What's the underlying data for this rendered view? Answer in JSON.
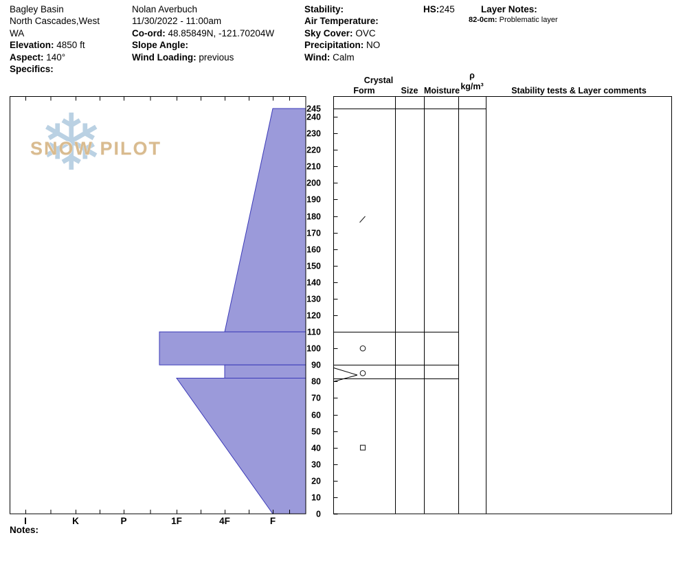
{
  "header": {
    "location": {
      "name": "Bagley Basin",
      "region_line1": "North Cascades,West",
      "region_line2": "WA",
      "elevation_label": "Elevation:",
      "elevation": "4850 ft",
      "aspect_label": "Aspect:",
      "aspect": "140°",
      "specifics_label": "Specifics:"
    },
    "observer": {
      "name": "Nolan Averbuch",
      "datetime": "11/30/2022 - 11:00am",
      "coord_label": "Co-ord:",
      "coord": "48.85849N, -121.70204W",
      "slope_label": "Slope Angle:",
      "wind_loading_label": "Wind Loading:",
      "wind_loading_value": "previous"
    },
    "conditions": {
      "stability_label": "Stability:",
      "air_temp_label": "Air Temperature:",
      "sky_label": "Sky Cover:",
      "sky_value": "OVC",
      "precip_label": "Precipitation:",
      "precip_value": "NO",
      "wind_label": "Wind:",
      "wind_value": "Calm"
    },
    "hs_label": "HS:",
    "hs_value": "245",
    "layer_notes_label": "Layer Notes:",
    "layer_note": {
      "depth": "82-0cm:",
      "text": "Problematic layer"
    }
  },
  "logo": {
    "snowflake": "❄",
    "text": "SNOW PILOT"
  },
  "columns": {
    "crystal": "Crystal",
    "form": "Form",
    "size": "Size",
    "moisture": "Moisture",
    "rho": "ρ",
    "rho_units": "kg/m³",
    "stability": "Stability tests & Layer comments"
  },
  "notes_label": "Notes:",
  "chart_data": {
    "type": "area",
    "title": "Snow pit hardness profile",
    "hs_cm": 245,
    "depth_axis": {
      "unit": "cm",
      "ticks": [
        245,
        240,
        230,
        220,
        210,
        200,
        190,
        180,
        170,
        160,
        150,
        140,
        130,
        120,
        110,
        100,
        90,
        80,
        70,
        60,
        50,
        40,
        30,
        20,
        10,
        0
      ]
    },
    "hardness_axis": {
      "categories": [
        "I",
        "K",
        "P",
        "1F",
        "4F",
        "F"
      ],
      "orientation": "hard-left-soft-right"
    },
    "layers": [
      {
        "top_cm": 245,
        "bottom_cm": 110,
        "hardness_top": "F",
        "hardness_bottom": "4F"
      },
      {
        "top_cm": 110,
        "bottom_cm": 90,
        "hardness_top": "1F+",
        "hardness_bottom": "1F+"
      },
      {
        "top_cm": 90,
        "bottom_cm": 82,
        "hardness_top": "4F",
        "hardness_bottom": "4F"
      },
      {
        "top_cm": 82,
        "bottom_cm": 0,
        "hardness_top": "1F",
        "hardness_bottom": "F"
      }
    ],
    "grain_forms": [
      {
        "depth_cm": 178,
        "symbol": "slash",
        "form": "decomposing-fragments"
      },
      {
        "depth_cm": 100,
        "symbol": "circle",
        "form": "rounded-grains"
      },
      {
        "depth_cm": 85,
        "symbol": "circle",
        "form": "rounded-grains"
      },
      {
        "depth_cm": 40,
        "symbol": "square",
        "form": "faceted-crystals"
      }
    ],
    "colors": {
      "layer_fill": "#9b9ada",
      "layer_stroke": "#3b3ab8"
    }
  }
}
